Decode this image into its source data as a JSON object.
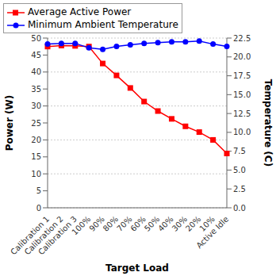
{
  "chart_data": {
    "type": "line",
    "x_label": "Target Load",
    "y_label": "Power (W)",
    "y2_label": "Temperature (C)",
    "categories": [
      "Calibration 1",
      "Calibration 2",
      "Calibration 3",
      "100%",
      "90%",
      "80%",
      "70%",
      "60%",
      "50%",
      "40%",
      "30%",
      "20%",
      "10%",
      "Active Idle"
    ],
    "series": [
      {
        "name": "Average Active Power",
        "color": "#ff0000",
        "marker": "square",
        "values": [
          47.5,
          47.8,
          47.7,
          47.5,
          42.5,
          39,
          35.3,
          31.3,
          28.5,
          26.2,
          24,
          22.3,
          20,
          16
        ]
      },
      {
        "name": "Minimum Ambient Temperature",
        "color": "#0000ff",
        "marker": "circle",
        "axis": "y2",
        "values": [
          21.7,
          21.8,
          21.8,
          21.2,
          21.0,
          21.4,
          21.6,
          21.8,
          21.9,
          22.0,
          22.0,
          22.1,
          21.7,
          21.4
        ]
      }
    ],
    "ylim": [
      0,
      50
    ],
    "yticks": [
      0,
      5,
      10,
      15,
      20,
      25,
      30,
      35,
      40,
      45,
      50
    ],
    "y2lim": [
      0,
      22.5
    ],
    "y2ticks": [
      {
        "value": 0,
        "label": "0.0"
      },
      2.5,
      {
        "value": 5,
        "label": "5.0"
      },
      7.5,
      {
        "value": 10,
        "label": "10.0"
      },
      12.5,
      {
        "value": 15,
        "label": "15.0"
      },
      17.5,
      {
        "value": 20,
        "label": "20.0"
      },
      22.5
    ],
    "grid": true,
    "legend": "top"
  }
}
